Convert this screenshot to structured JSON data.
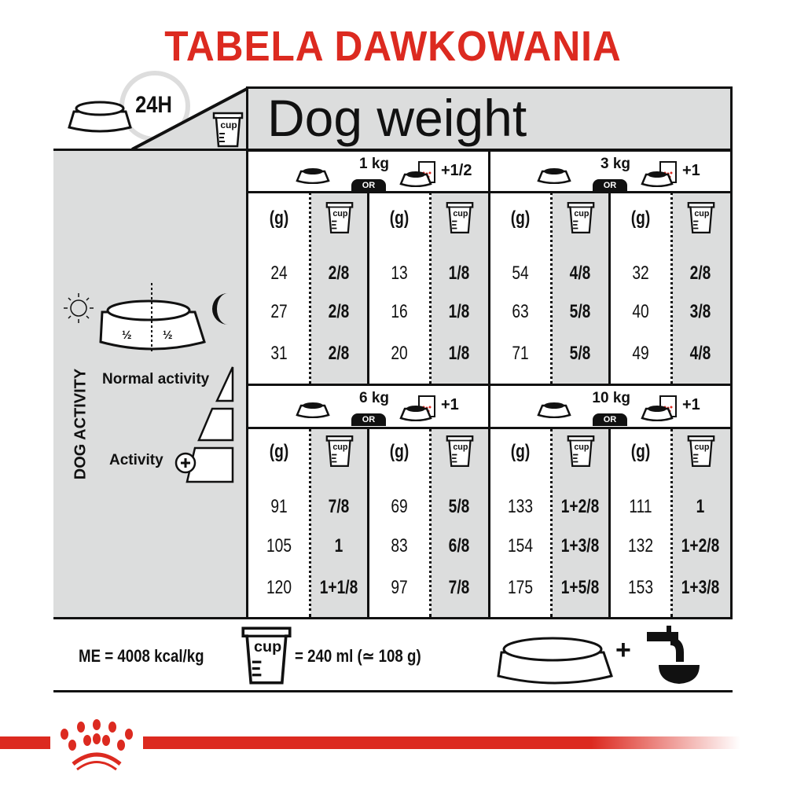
{
  "title": "TABELA DAWKOWANIA",
  "header": {
    "clock_label": "24H",
    "cup_label": "cup",
    "weight_title": "Dog weight"
  },
  "left_panel": {
    "half_left": "½",
    "half_right": "½",
    "activity_axis_label": "DOG ACTIVITY",
    "normal_activity": "Normal activity",
    "activity_plus": "Activity",
    "icons": [
      "sun-icon",
      "moon-icon",
      "bowl-icon",
      "plus-icon"
    ]
  },
  "or_label": "OR",
  "col_headers": {
    "grams": "(g)",
    "cup": "cup"
  },
  "blocks": [
    {
      "weight": "1 kg",
      "wet_addition": "+1/2",
      "dry_only": [
        [
          "24",
          "2/8"
        ],
        [
          "27",
          "2/8"
        ],
        [
          "31",
          "2/8"
        ]
      ],
      "mixed": [
        [
          "13",
          "1/8"
        ],
        [
          "16",
          "1/8"
        ],
        [
          "20",
          "1/8"
        ]
      ]
    },
    {
      "weight": "3 kg",
      "wet_addition": "+1",
      "dry_only": [
        [
          "54",
          "4/8"
        ],
        [
          "63",
          "5/8"
        ],
        [
          "71",
          "5/8"
        ]
      ],
      "mixed": [
        [
          "32",
          "2/8"
        ],
        [
          "40",
          "3/8"
        ],
        [
          "49",
          "4/8"
        ]
      ]
    },
    {
      "weight": "6 kg",
      "wet_addition": "+1",
      "dry_only": [
        [
          "91",
          "7/8"
        ],
        [
          "105",
          "1"
        ],
        [
          "120",
          "1+1/8"
        ]
      ],
      "mixed": [
        [
          "69",
          "5/8"
        ],
        [
          "83",
          "6/8"
        ],
        [
          "97",
          "7/8"
        ]
      ]
    },
    {
      "weight": "10 kg",
      "wet_addition": "+1",
      "dry_only": [
        [
          "133",
          "1+2/8"
        ],
        [
          "154",
          "1+3/8"
        ],
        [
          "175",
          "1+5/8"
        ]
      ],
      "mixed": [
        [
          "111",
          "1"
        ],
        [
          "132",
          "1+2/8"
        ],
        [
          "153",
          "1+3/8"
        ]
      ]
    }
  ],
  "footer": {
    "energy": "ME = 4008 kcal/kg",
    "cup_label": "cup",
    "cup_equiv": "= 240 ml (≃ 108 g)",
    "plus": "+"
  },
  "colors": {
    "brand_red": "#dc2a20",
    "panel_gray": "#dcdddd",
    "ink": "#111111"
  }
}
